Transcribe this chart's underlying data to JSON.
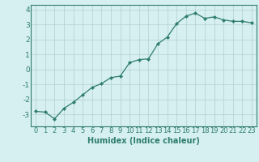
{
  "x": [
    0,
    1,
    2,
    3,
    4,
    5,
    6,
    7,
    8,
    9,
    10,
    11,
    12,
    13,
    14,
    15,
    16,
    17,
    18,
    19,
    20,
    21,
    22,
    23
  ],
  "y": [
    -2.8,
    -2.85,
    -3.3,
    -2.6,
    -2.2,
    -1.7,
    -1.2,
    -0.95,
    -0.55,
    -0.45,
    0.45,
    0.65,
    0.7,
    1.7,
    2.15,
    3.05,
    3.55,
    3.75,
    3.4,
    3.5,
    3.3,
    3.2,
    3.2,
    3.1
  ],
  "line_color": "#2e7d6e",
  "marker": "D",
  "marker_size": 2.0,
  "bg_color": "#d6eff0",
  "grid_color": "#b0cfd4",
  "tick_color": "#2e7d6e",
  "xlabel": "Humidex (Indice chaleur)",
  "ylim": [
    -3.8,
    4.3
  ],
  "xlim": [
    -0.5,
    23.5
  ],
  "yticks": [
    -3,
    -2,
    -1,
    0,
    1,
    2,
    3,
    4
  ],
  "xticks": [
    0,
    1,
    2,
    3,
    4,
    5,
    6,
    7,
    8,
    9,
    10,
    11,
    12,
    13,
    14,
    15,
    16,
    17,
    18,
    19,
    20,
    21,
    22,
    23
  ],
  "xlabel_fontsize": 7,
  "tick_fontsize": 6,
  "linewidth": 0.9
}
